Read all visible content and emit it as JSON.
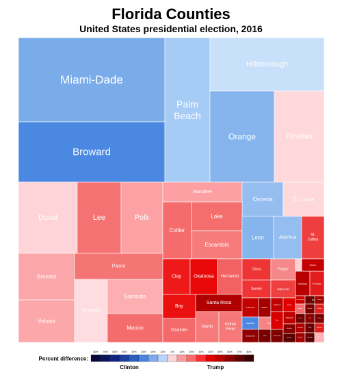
{
  "chart_data": {
    "type": "treemap",
    "title": "Florida Counties",
    "subtitle": "United States presidential election, 2016",
    "legend": {
      "label": "Percent difference:",
      "left_label": "Clinton",
      "right_label": "Trump",
      "ticks": [
        "80%",
        "70%",
        "60%",
        "50%",
        "40%",
        "30%",
        "20%",
        "10%",
        "0%",
        "10%",
        "20%",
        "30%",
        "40%",
        "50%",
        "60%",
        "70%",
        "80%"
      ],
      "colors": [
        "#08083a",
        "#0a1560",
        "#12237f",
        "#1c3fa0",
        "#2a5ec0",
        "#4a84dd",
        "#80aaee",
        "#b8d4f8",
        "#ffd4d8",
        "#ff9a9a",
        "#ff6a6a",
        "#ff2f2f",
        "#e00000",
        "#b80000",
        "#8c0000",
        "#620000",
        "#3a0000"
      ]
    },
    "counties": [
      {
        "name": "Miami-Dade",
        "color": "#7aacea",
        "text_color": "#ffffff"
      },
      {
        "name": "Broward",
        "color": "#4a88e2",
        "text_color": "#ffffff"
      },
      {
        "name": "Palm Beach",
        "color": "#a6cbf4",
        "text_color": "#ffffff"
      },
      {
        "name": "Hillsborough",
        "color": "#c8e0fa",
        "text_color": "#ffffff"
      },
      {
        "name": "Orange",
        "color": "#86b4ec",
        "text_color": "#ffffff"
      },
      {
        "name": "Pinellas",
        "color": "#ffd8dc",
        "text_color": "#ffffff"
      },
      {
        "name": "Duval",
        "color": "#ffd4d8",
        "text_color": "#ffffff"
      },
      {
        "name": "Lee",
        "color": "#f57272",
        "text_color": "#ffffff"
      },
      {
        "name": "Polk",
        "color": "#fca2a4",
        "text_color": "#ffffff"
      },
      {
        "name": "Manatee",
        "color": "#fca0a4",
        "text_color": "#ffffff"
      },
      {
        "name": "Osceola",
        "color": "#96bdf0",
        "text_color": "#ffffff"
      },
      {
        "name": "St. Lucie",
        "color": "#ffd8dc",
        "text_color": "#ffffff"
      },
      {
        "name": "Collier",
        "color": "#f46c6c",
        "text_color": "#ffffff"
      },
      {
        "name": "Lake",
        "color": "#f56e6e",
        "text_color": "#ffffff"
      },
      {
        "name": "Escambia",
        "color": "#f67c7c",
        "text_color": "#ffffff"
      },
      {
        "name": "Leon",
        "color": "#86b4ec",
        "text_color": "#ffffff"
      },
      {
        "name": "Alachua",
        "color": "#96bdf0",
        "text_color": "#ffffff"
      },
      {
        "name": "St. Johns",
        "color": "#ef3e3e",
        "text_color": "#ffffff"
      },
      {
        "name": "Brevard",
        "color": "#fba6a8",
        "text_color": "#ffffff"
      },
      {
        "name": "Volusia",
        "color": "#fca8aa",
        "text_color": "#ffffff"
      },
      {
        "name": "Pasco",
        "color": "#f57474",
        "text_color": "#ffffff"
      },
      {
        "name": "Seminole",
        "color": "#ffdcdf",
        "text_color": "#ffffff"
      },
      {
        "name": "Sarasota",
        "color": "#fcaeb0",
        "text_color": "#ffffff"
      },
      {
        "name": "Marion",
        "color": "#f46c6c",
        "text_color": "#ffffff"
      },
      {
        "name": "Clay",
        "color": "#ee1a1a",
        "text_color": "#ffffff"
      },
      {
        "name": "Okaloosa",
        "color": "#e80808",
        "text_color": "#ffffff"
      },
      {
        "name": "Hernando",
        "color": "#f36262",
        "text_color": "#ffffff"
      },
      {
        "name": "Bay",
        "color": "#ea1010",
        "text_color": "#ffffff"
      },
      {
        "name": "Santa Rosa",
        "color": "#b00000",
        "text_color": "#ffffff"
      },
      {
        "name": "Charlotte",
        "color": "#f46a6a",
        "text_color": "#ffffff"
      },
      {
        "name": "Martin",
        "color": "#f67a7a",
        "text_color": "#ffffff"
      },
      {
        "name": "Indian River",
        "color": "#f67878",
        "text_color": "#ffffff"
      },
      {
        "name": "Citrus",
        "color": "#ee3434",
        "text_color": "#ffffff"
      },
      {
        "name": "Flagler",
        "color": "#f58888",
        "text_color": "#ffffff"
      },
      {
        "name": "Sumter",
        "color": "#ee3434",
        "text_color": "#ffffff"
      },
      {
        "name": "Highlands",
        "color": "#ee4040",
        "text_color": "#ffffff"
      },
      {
        "name": "Nassau",
        "color": "#b80000",
        "text_color": "#ffffff"
      },
      {
        "name": "Putnam",
        "color": "#e21c1c",
        "text_color": "#ffffff"
      },
      {
        "name": "Columbia",
        "color": "#c40000",
        "text_color": "#ffffff"
      },
      {
        "name": "Walton",
        "color": "#a40000",
        "text_color": "#ffffff"
      },
      {
        "name": "Gadsden",
        "color": "#4a88e2",
        "text_color": "#ffffff"
      },
      {
        "name": "Suwannee",
        "color": "#900000",
        "text_color": "#ffffff"
      },
      {
        "name": "Jackson",
        "color": "#c00000",
        "text_color": "#ffffff"
      },
      {
        "name": "Levy",
        "color": "#e00000",
        "text_color": "#ffffff"
      },
      {
        "name": "Monroe",
        "color": "#f58484",
        "text_color": "#ffffff"
      },
      {
        "name": "Wakulla",
        "color": "#c00000",
        "text_color": "#ffffff"
      },
      {
        "name": "Okeechobee",
        "color": "#c80000",
        "text_color": "#ffffff"
      },
      {
        "name": "Baker",
        "color": "#6a0000",
        "text_color": "#ffffff"
      },
      {
        "name": "Hendry",
        "color": "#f07070",
        "text_color": "#ffffff"
      },
      {
        "name": "Gilchrist",
        "color": "#780000",
        "text_color": "#ffffff"
      },
      {
        "name": "DeSoto",
        "color": "#e02020",
        "text_color": "#ffffff"
      },
      {
        "name": "Taylor",
        "color": "#780000",
        "text_color": "#ffffff"
      },
      {
        "name": "Washington",
        "color": "#800000",
        "text_color": "#ffffff"
      },
      {
        "name": "Bradford",
        "color": "#880000",
        "text_color": "#ffffff"
      },
      {
        "name": "Holmes",
        "color": "#5a0000",
        "text_color": "#ffffff"
      },
      {
        "name": "Union",
        "color": "#700000",
        "text_color": "#ffffff"
      },
      {
        "name": "Gulf",
        "color": "#8a0000",
        "text_color": "#ffffff"
      },
      {
        "name": "Calhoun",
        "color": "#7a0000",
        "text_color": "#ffffff"
      },
      {
        "name": "Hamilton",
        "color": "#b00000",
        "text_color": "#ffffff"
      },
      {
        "name": "Dixie",
        "color": "#6a0000",
        "text_color": "#ffffff"
      },
      {
        "name": "Madison",
        "color": "#e02020",
        "text_color": "#ffffff"
      },
      {
        "name": "Franklin",
        "color": "#a00000",
        "text_color": "#ffffff"
      },
      {
        "name": "Lafayette",
        "color": "#5a0000",
        "text_color": "#ffffff"
      },
      {
        "name": "Jefferson",
        "color": "#ffb0b4",
        "text_color": "#ffffff"
      },
      {
        "name": "Glades",
        "color": "#d80000",
        "text_color": "#ffffff"
      },
      {
        "name": "Liberty",
        "color": "#a00000",
        "text_color": "#ffffff"
      },
      {
        "name": "Hardee",
        "color": "#c40000",
        "text_color": "#ffffff"
      },
      {
        "name": "",
        "color": "#ffd0d4",
        "text_color": "#ffffff"
      },
      {
        "name": "",
        "color": "#fcc0c4",
        "text_color": "#ffffff"
      },
      {
        "name": "",
        "color": "#ffd8dc",
        "text_color": "#ffffff"
      },
      {
        "name": "",
        "color": "#ff8080",
        "text_color": "#ffffff"
      },
      {
        "name": "",
        "color": "#fcb8bc",
        "text_color": "#ffffff"
      },
      {
        "name": "",
        "color": "#f07070",
        "text_color": "#ffffff"
      },
      {
        "name": "",
        "color": "#ffc8cc",
        "text_color": "#ffffff"
      },
      {
        "name": "",
        "color": "#ff9090",
        "text_color": "#ffffff"
      }
    ]
  }
}
